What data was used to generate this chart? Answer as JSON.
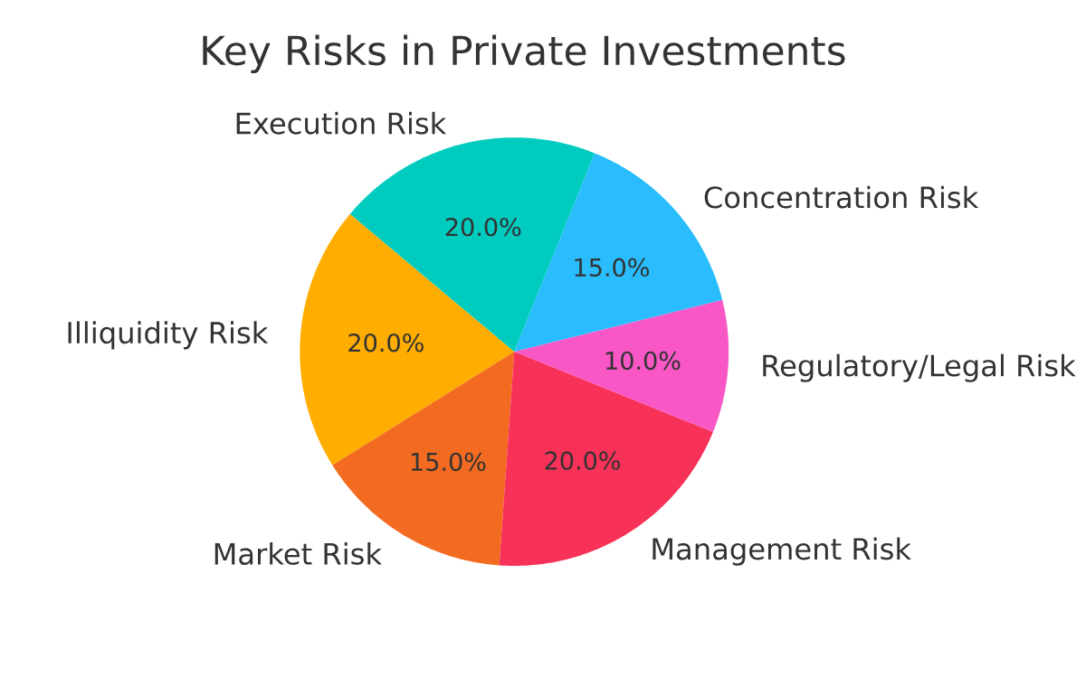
{
  "chart_data": {
    "type": "pie",
    "title": "Key Risks in Private Investments",
    "categories": [
      "Illiquidity Risk",
      "Market Risk",
      "Management Risk",
      "Regulatory/Legal Risk",
      "Concentration Risk",
      "Execution Risk"
    ],
    "values": [
      20,
      15,
      20,
      10,
      15,
      20
    ],
    "colors": [
      "#ffad00",
      "#f26b21",
      "#f73157",
      "#f857c5",
      "#29bdfd",
      "#00cbbf"
    ],
    "value_labels": [
      "20.0%",
      "15.0%",
      "20.0%",
      "10.0%",
      "15.0%",
      "20.0%"
    ]
  }
}
